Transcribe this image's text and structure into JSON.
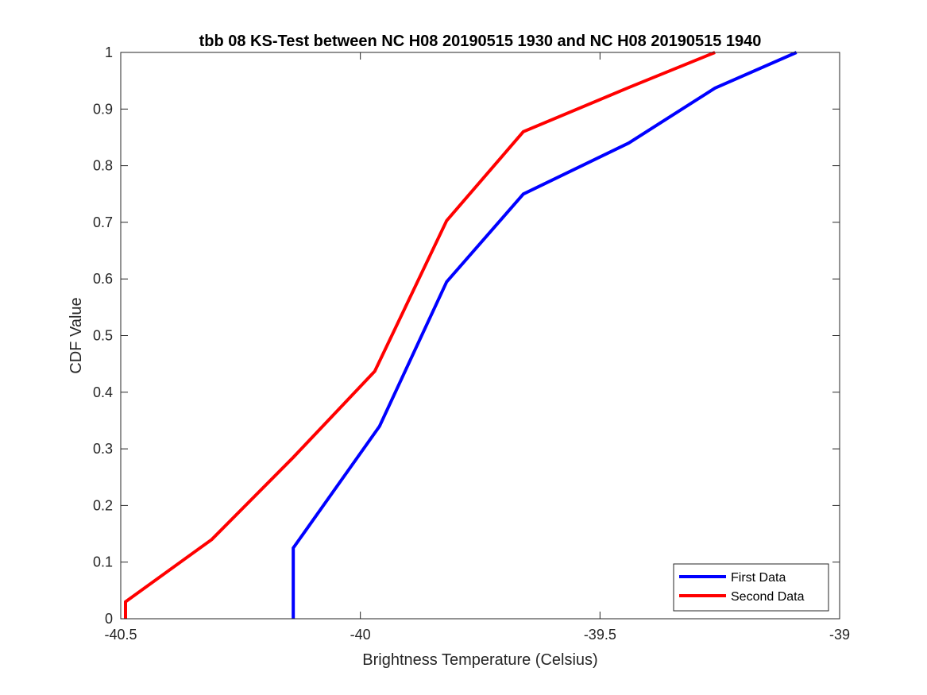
{
  "chart_data": {
    "type": "line",
    "title": "tbb 08 KS-Test between NC H08 20190515 1930 and NC H08 20190515 1940",
    "xlabel": "Brightness Temperature (Celsius)",
    "ylabel": "CDF Value",
    "xlim": [
      -40.5,
      -39
    ],
    "ylim": [
      0,
      1
    ],
    "xticks": [
      -40.5,
      -40,
      -39.5,
      -39
    ],
    "xtick_labels": [
      "-40.5",
      "-40",
      "-39.5",
      "-39"
    ],
    "yticks": [
      0,
      0.1,
      0.2,
      0.3,
      0.4,
      0.5,
      0.6,
      0.7,
      0.8,
      0.9,
      1
    ],
    "ytick_labels": [
      "0",
      "0.1",
      "0.2",
      "0.3",
      "0.4",
      "0.5",
      "0.6",
      "0.7",
      "0.8",
      "0.9",
      "1"
    ],
    "grid": false,
    "legend_position": "bottom-right",
    "series": [
      {
        "name": "First Data",
        "color": "#0000ff",
        "x": [
          -40.14,
          -40.14,
          -40.14,
          -39.96,
          -39.82,
          -39.66,
          -39.44,
          -39.26,
          -39.09
        ],
        "y": [
          0,
          0.01,
          0.125,
          0.34,
          0.595,
          0.75,
          0.84,
          0.937,
          1.0
        ]
      },
      {
        "name": "Second Data",
        "color": "#ff0000",
        "x": [
          -40.49,
          -40.49,
          -40.31,
          -40.14,
          -39.97,
          -39.82,
          -39.66,
          -39.44,
          -39.26
        ],
        "y": [
          0,
          0.03,
          0.14,
          0.285,
          0.437,
          0.703,
          0.86,
          0.938,
          1.0
        ]
      }
    ]
  }
}
